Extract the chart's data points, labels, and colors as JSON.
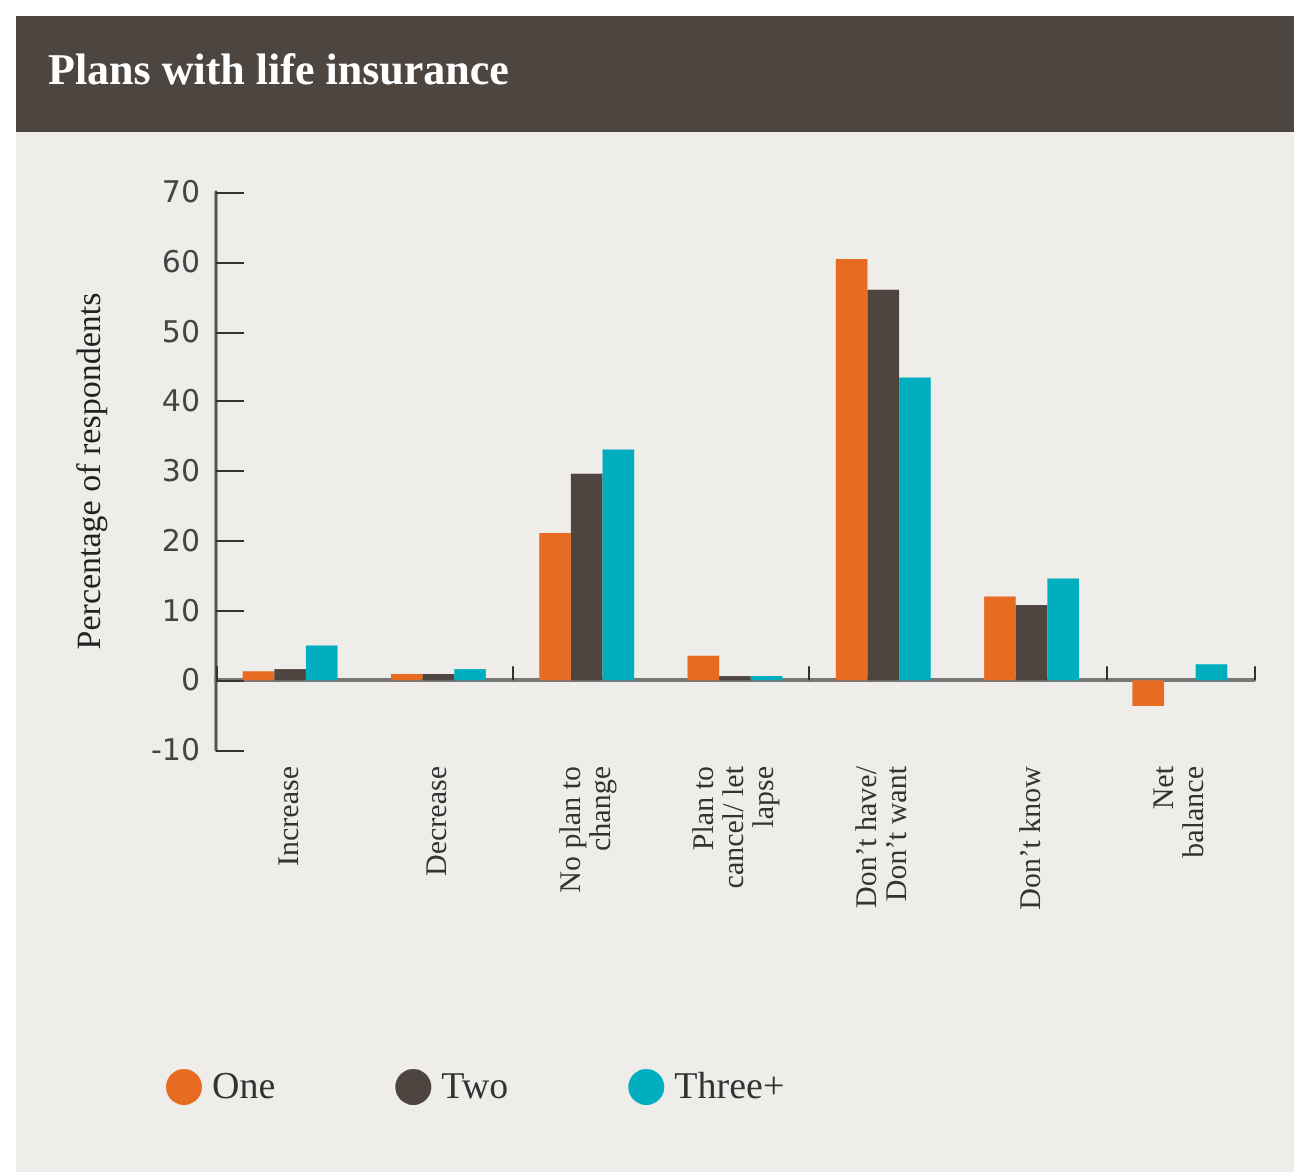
{
  "chart_data": {
    "type": "bar",
    "title": "Plans with life insurance",
    "ylabel": "Percentage of respondents",
    "categories": [
      "Increase",
      "Decrease",
      "No plan to\nchange",
      "Plan to\ncancel/ let\nlapse",
      "Don’t have/\nDon’t want",
      "Don’t know",
      "Net\nbalance"
    ],
    "series": [
      {
        "name": "One",
        "color": "#e86b22",
        "values": [
          1.3,
          0.9,
          21.1,
          3.5,
          60.4,
          12.0,
          -3.7
        ]
      },
      {
        "name": "Two",
        "color": "#4f4540",
        "values": [
          1.6,
          0.9,
          29.6,
          0.6,
          56.0,
          10.8,
          null
        ]
      },
      {
        "name": "Three+",
        "color": "#00aebf",
        "values": [
          5.0,
          1.6,
          33.1,
          0.6,
          43.4,
          14.6,
          2.3
        ]
      }
    ],
    "ylim": [
      -10,
      70
    ],
    "yticks": [
      -10,
      0,
      10,
      20,
      30,
      40,
      50,
      60,
      70
    ],
    "legend": "bottom"
  }
}
